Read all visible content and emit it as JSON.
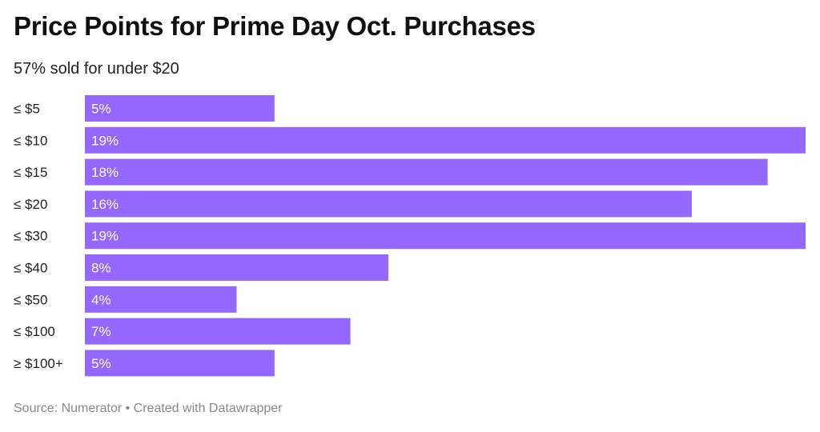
{
  "chart_data": {
    "type": "bar",
    "orientation": "horizontal",
    "title": "Price Points for Prime Day Oct. Purchases",
    "subtitle": "57% sold for under $20",
    "categories": [
      "≤ $5",
      "≤ $10",
      "≤ $15",
      "≤ $20",
      "≤ $30",
      "≤ $40",
      "≤ $50",
      "≤ $100",
      "≥ $100+"
    ],
    "values": [
      5,
      19,
      18,
      16,
      19,
      8,
      4,
      7,
      5
    ],
    "data_labels": [
      "5%",
      "19%",
      "18%",
      "16%",
      "19%",
      "8%",
      "4%",
      "7%",
      "5%"
    ],
    "xlim": [
      0,
      19
    ],
    "grid": false,
    "bar_color": "#9467FD",
    "label_color": "#ffffff",
    "source": "Source: Numerator • Created with Datawrapper"
  }
}
